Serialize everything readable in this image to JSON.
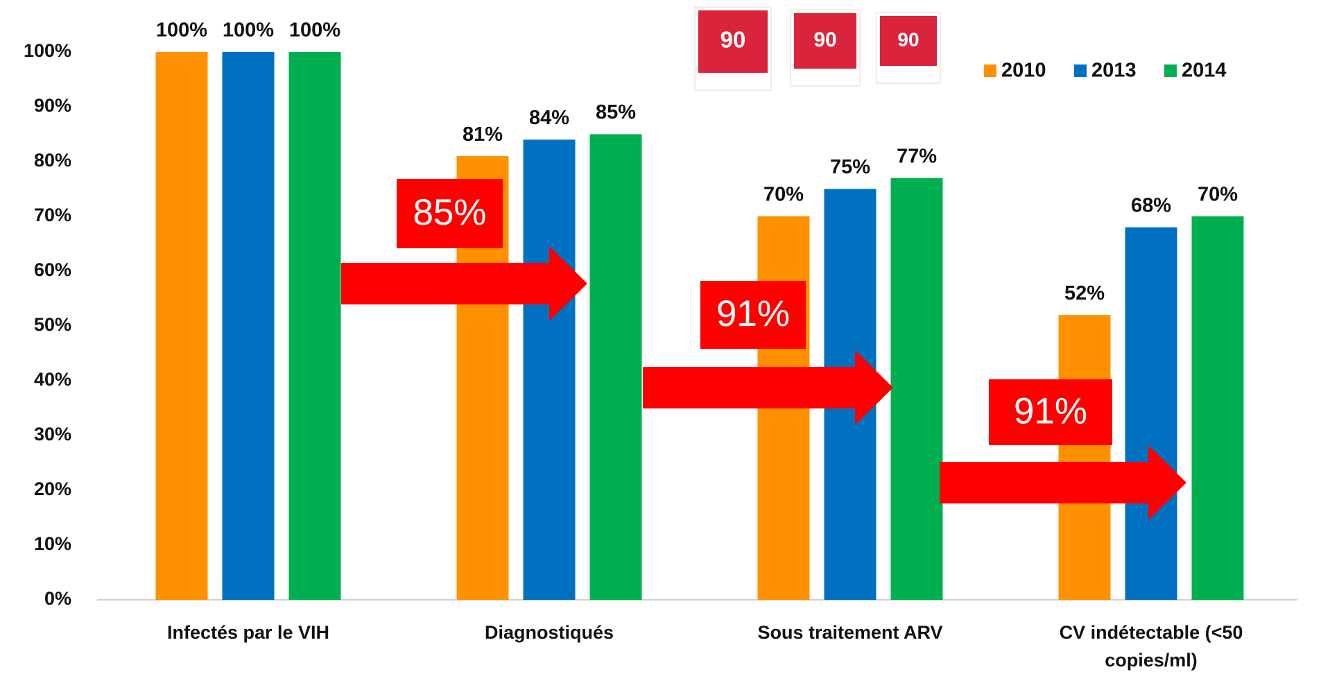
{
  "chart_data": {
    "type": "bar",
    "categories": [
      "Infectés par le VIH",
      "Diagnostiqués",
      "Sous traitement ARV",
      "CV indétectable (<50 copies/ml)"
    ],
    "series": [
      {
        "name": "2010",
        "color": "#ff9100",
        "values": [
          100,
          81,
          70,
          52
        ],
        "value_labels": [
          "100%",
          "81%",
          "70%",
          "52%"
        ]
      },
      {
        "name": "2013",
        "color": "#0070c0",
        "values": [
          100,
          84,
          75,
          68
        ],
        "value_labels": [
          "100%",
          "84%",
          "75%",
          "68%"
        ]
      },
      {
        "name": "2014",
        "color": "#00b050",
        "values": [
          100,
          85,
          77,
          70
        ],
        "value_labels": [
          "100%",
          "85%",
          "77%",
          "70%"
        ]
      }
    ],
    "ylim": [
      0,
      100
    ],
    "yticks": [
      {
        "value": 0,
        "label": "0%"
      },
      {
        "value": 10,
        "label": "10%"
      },
      {
        "value": 20,
        "label": "20%"
      },
      {
        "value": 30,
        "label": "30%"
      },
      {
        "value": 40,
        "label": "40%"
      },
      {
        "value": 50,
        "label": "50%"
      },
      {
        "value": 60,
        "label": "60%"
      },
      {
        "value": 70,
        "label": "70%"
      },
      {
        "value": 80,
        "label": "80%"
      },
      {
        "value": 90,
        "label": "90%"
      },
      {
        "value": 100,
        "label": "100%"
      }
    ],
    "legend": "top-right",
    "annotations": [
      {
        "text": "85%"
      },
      {
        "text": "91%"
      },
      {
        "text": "91%"
      }
    ],
    "badges": [
      "90",
      "90",
      "90"
    ]
  }
}
